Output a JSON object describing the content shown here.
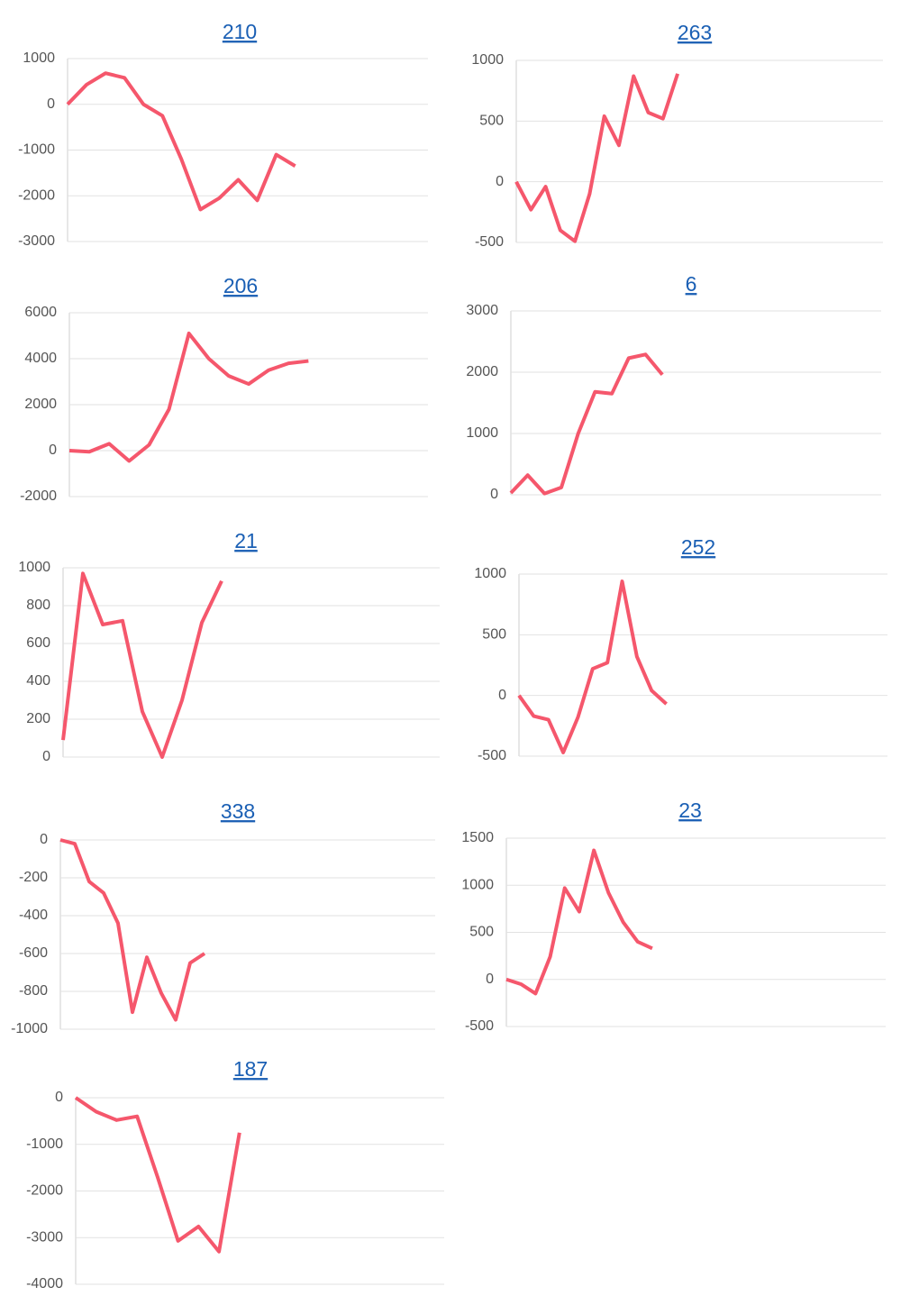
{
  "chart_data": [
    {
      "type": "line",
      "title": "210",
      "color": "#f5576c",
      "grid": true,
      "ylim": [
        -3000,
        1000
      ],
      "yticks": [
        1000,
        0,
        -1000,
        -2000,
        -3000
      ],
      "categories": [
        null,
        null,
        null,
        null,
        null,
        null,
        null,
        null,
        null,
        null,
        null,
        null,
        null,
        null,
        null,
        null,
        null,
        null,
        null,
        null
      ],
      "values": [
        0,
        430,
        680,
        580,
        0,
        -250,
        -1200,
        -2300,
        -2050,
        -1650,
        -2100,
        -1100,
        -1350,
        null,
        null,
        null,
        null,
        null,
        null,
        null
      ]
    },
    {
      "type": "line",
      "title": "263",
      "color": "#f5576c",
      "grid": true,
      "ylim": [
        -500,
        1000
      ],
      "yticks": [
        1000,
        500,
        0,
        -500
      ],
      "categories": [
        null,
        null,
        null,
        null,
        null,
        null,
        null,
        null,
        null,
        null,
        null,
        null,
        null,
        null,
        null,
        null,
        null,
        null,
        null,
        null,
        null,
        null,
        null,
        null,
        null,
        null
      ],
      "values": [
        0,
        -230,
        -40,
        -400,
        -490,
        -100,
        540,
        300,
        870,
        570,
        520,
        890,
        null,
        null,
        null,
        null,
        null,
        null,
        null,
        null,
        null,
        null,
        null,
        null,
        null,
        null
      ]
    },
    {
      "type": "line",
      "title": "206",
      "color": "#f5576c",
      "grid": true,
      "ylim": [
        -2000,
        6000
      ],
      "yticks": [
        6000,
        4000,
        2000,
        0,
        -2000
      ],
      "categories": [
        null,
        null,
        null,
        null,
        null,
        null,
        null,
        null,
        null,
        null,
        null,
        null,
        null,
        null,
        null,
        null,
        null,
        null,
        null
      ],
      "values": [
        0,
        -50,
        300,
        -450,
        250,
        1800,
        5100,
        4000,
        3250,
        2900,
        3500,
        3800,
        3900,
        null,
        null,
        null,
        null,
        null,
        null
      ]
    },
    {
      "type": "line",
      "title": "6",
      "color": "#f5576c",
      "grid": true,
      "ylim": [
        0,
        3000
      ],
      "yticks": [
        3000,
        2000,
        1000,
        0
      ],
      "categories": [
        null,
        null,
        null,
        null,
        null,
        null,
        null,
        null,
        null,
        null,
        null,
        null,
        null,
        null,
        null,
        null,
        null,
        null,
        null,
        null,
        null,
        null,
        null
      ],
      "values": [
        30,
        320,
        20,
        120,
        1000,
        1680,
        1650,
        2230,
        2290,
        1960,
        null,
        null,
        null,
        null,
        null,
        null,
        null,
        null,
        null,
        null,
        null,
        null,
        null
      ]
    },
    {
      "type": "line",
      "title": "21",
      "color": "#f5576c",
      "grid": true,
      "ylim": [
        0,
        1000
      ],
      "yticks": [
        1000,
        800,
        600,
        400,
        200,
        0
      ],
      "categories": [
        null,
        null,
        null,
        null,
        null,
        null,
        null,
        null,
        null,
        null,
        null,
        null,
        null,
        null,
        null,
        null,
        null,
        null,
        null,
        null
      ],
      "values": [
        90,
        970,
        700,
        720,
        240,
        0,
        300,
        710,
        930,
        null,
        null,
        null,
        null,
        null,
        null,
        null,
        null,
        null,
        null,
        null
      ]
    },
    {
      "type": "line",
      "title": "252",
      "color": "#f5576c",
      "grid": true,
      "ylim": [
        -500,
        1000
      ],
      "yticks": [
        1000,
        500,
        0,
        -500
      ],
      "categories": [
        null,
        null,
        null,
        null,
        null,
        null,
        null,
        null,
        null,
        null,
        null,
        null,
        null,
        null,
        null,
        null,
        null,
        null,
        null,
        null,
        null,
        null,
        null,
        null,
        null,
        null
      ],
      "values": [
        0,
        -170,
        -200,
        -470,
        -180,
        220,
        270,
        940,
        320,
        40,
        -70,
        null,
        null,
        null,
        null,
        null,
        null,
        null,
        null,
        null,
        null,
        null,
        null,
        null,
        null,
        null
      ]
    },
    {
      "type": "line",
      "title": "338",
      "color": "#f5576c",
      "grid": true,
      "ylim": [
        -1000,
        0
      ],
      "yticks": [
        0,
        -200,
        -400,
        -600,
        -800,
        -1000
      ],
      "categories": [
        null,
        null,
        null,
        null,
        null,
        null,
        null,
        null,
        null,
        null,
        null,
        null,
        null,
        null,
        null,
        null,
        null,
        null,
        null,
        null,
        null,
        null,
        null,
        null,
        null,
        null,
        null
      ],
      "values": [
        0,
        -20,
        -220,
        -280,
        -440,
        -910,
        -620,
        -810,
        -950,
        -650,
        -600,
        null,
        null,
        null,
        null,
        null,
        null,
        null,
        null,
        null,
        null,
        null,
        null,
        null,
        null,
        null,
        null
      ]
    },
    {
      "type": "line",
      "title": "23",
      "color": "#f5576c",
      "grid": true,
      "ylim": [
        -500,
        1500
      ],
      "yticks": [
        1500,
        1000,
        500,
        0,
        -500
      ],
      "categories": [
        null,
        null,
        null,
        null,
        null,
        null,
        null,
        null,
        null,
        null,
        null,
        null,
        null,
        null,
        null,
        null,
        null,
        null,
        null,
        null,
        null,
        null,
        null,
        null,
        null,
        null,
        null
      ],
      "values": [
        0,
        -50,
        -150,
        240,
        970,
        720,
        1370,
        920,
        610,
        400,
        330,
        null,
        null,
        null,
        null,
        null,
        null,
        null,
        null,
        null,
        null,
        null,
        null,
        null,
        null,
        null,
        null
      ]
    },
    {
      "type": "line",
      "title": "187",
      "color": "#f5576c",
      "grid": true,
      "ylim": [
        -4000,
        0
      ],
      "yticks": [
        0,
        -1000,
        -2000,
        -3000,
        -4000
      ],
      "categories": [
        null,
        null,
        null,
        null,
        null,
        null,
        null,
        null,
        null,
        null,
        null,
        null,
        null,
        null,
        null,
        null,
        null,
        null,
        null
      ],
      "values": [
        0,
        -300,
        -480,
        -400,
        -1700,
        -3070,
        -2760,
        -3300,
        -750,
        null,
        null,
        null,
        null,
        null,
        null,
        null,
        null,
        null,
        null
      ]
    }
  ]
}
